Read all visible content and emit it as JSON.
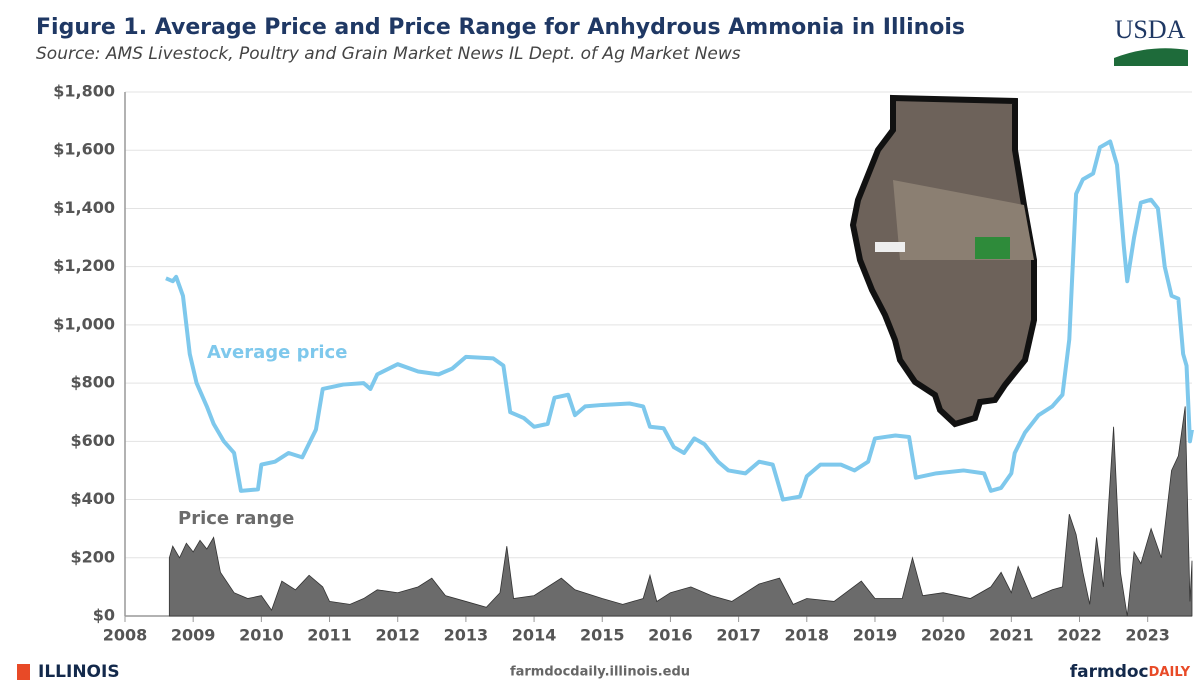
{
  "chart_data": {
    "type": "line",
    "title": "Figure 1. Average Price and Price Range for Anhydrous Ammonia in Illinois",
    "subtitle": "Source: AMS Livestock, Poultry and Grain Market News IL Dept. of Ag Market News",
    "xlim": [
      2008,
      2023.65
    ],
    "xticks": [
      2008,
      2009,
      2010,
      2011,
      2012,
      2013,
      2014,
      2015,
      2016,
      2017,
      2018,
      2019,
      2020,
      2021,
      2022,
      2023
    ],
    "ylim": [
      0,
      1800
    ],
    "yticks": [
      {
        "value": 0,
        "label": "$0"
      },
      {
        "value": 200,
        "label": "$200"
      },
      {
        "value": 400,
        "label": "$400"
      },
      {
        "value": 600,
        "label": "$600"
      },
      {
        "value": 800,
        "label": "$800"
      },
      {
        "value": 1000,
        "label": "$1,000"
      },
      {
        "value": 1200,
        "label": "$1,200"
      },
      {
        "value": 1400,
        "label": "$1,400"
      },
      {
        "value": 1600,
        "label": "$1,600"
      },
      {
        "value": 1800,
        "label": "$1,800"
      }
    ],
    "grid": true,
    "series": [
      {
        "name": "Average price",
        "color": "#7ec8ec",
        "kind": "line",
        "x": [
          2008.6,
          2008.7,
          2008.75,
          2008.85,
          2008.95,
          2009.05,
          2009.2,
          2009.3,
          2009.45,
          2009.6,
          2009.7,
          2009.95,
          2010.0,
          2010.2,
          2010.4,
          2010.6,
          2010.8,
          2010.9,
          2011.2,
          2011.5,
          2011.6,
          2011.7,
          2012.0,
          2012.3,
          2012.6,
          2012.8,
          2013.0,
          2013.4,
          2013.55,
          2013.65,
          2013.85,
          2014.0,
          2014.2,
          2014.3,
          2014.5,
          2014.6,
          2014.75,
          2015.0,
          2015.4,
          2015.6,
          2015.7,
          2015.9,
          2016.05,
          2016.2,
          2016.35,
          2016.5,
          2016.7,
          2016.85,
          2017.1,
          2017.3,
          2017.5,
          2017.65,
          2017.9,
          2018.0,
          2018.2,
          2018.5,
          2018.7,
          2018.9,
          2019.0,
          2019.3,
          2019.5,
          2019.6,
          2019.9,
          2020.3,
          2020.6,
          2020.7,
          2020.85,
          2021.0,
          2021.05,
          2021.2,
          2021.4,
          2021.6,
          2021.75,
          2021.85,
          2021.95,
          2022.05,
          2022.2,
          2022.3,
          2022.45,
          2022.55,
          2022.65,
          2022.7,
          2022.8,
          2022.9,
          2023.05,
          2023.15,
          2023.25,
          2023.35,
          2023.45,
          2023.52,
          2023.57,
          2023.62,
          2023.65
        ],
        "values": [
          1160,
          1150,
          1165,
          1100,
          900,
          800,
          720,
          660,
          600,
          560,
          430,
          435,
          520,
          530,
          560,
          545,
          640,
          780,
          795,
          800,
          780,
          830,
          865,
          840,
          830,
          850,
          890,
          885,
          860,
          700,
          680,
          650,
          660,
          750,
          760,
          690,
          720,
          725,
          730,
          720,
          650,
          645,
          580,
          560,
          610,
          590,
          530,
          500,
          490,
          530,
          520,
          400,
          410,
          480,
          520,
          520,
          500,
          530,
          610,
          620,
          615,
          475,
          490,
          500,
          490,
          430,
          440,
          490,
          560,
          630,
          690,
          720,
          760,
          950,
          1450,
          1500,
          1520,
          1610,
          1630,
          1550,
          1270,
          1150,
          1300,
          1420,
          1430,
          1400,
          1200,
          1100,
          1090,
          900,
          860,
          600,
          640
        ]
      },
      {
        "name": "Price range",
        "color": "#6b6b6b",
        "kind": "area",
        "x": [
          2008.65,
          2008.7,
          2008.8,
          2008.9,
          2009.0,
          2009.1,
          2009.2,
          2009.3,
          2009.4,
          2009.6,
          2009.8,
          2010.0,
          2010.15,
          2010.3,
          2010.5,
          2010.7,
          2010.9,
          2011.0,
          2011.3,
          2011.5,
          2011.7,
          2012.0,
          2012.3,
          2012.5,
          2012.7,
          2013.0,
          2013.3,
          2013.5,
          2013.6,
          2013.7,
          2014.0,
          2014.4,
          2014.6,
          2015.0,
          2015.3,
          2015.6,
          2015.7,
          2015.8,
          2016.0,
          2016.3,
          2016.6,
          2016.9,
          2017.3,
          2017.6,
          2017.8,
          2018.0,
          2018.4,
          2018.8,
          2019.0,
          2019.4,
          2019.55,
          2019.7,
          2020.0,
          2020.4,
          2020.7,
          2020.85,
          2021.0,
          2021.1,
          2021.3,
          2021.6,
          2021.75,
          2021.85,
          2021.95,
          2022.05,
          2022.15,
          2022.25,
          2022.35,
          2022.5,
          2022.6,
          2022.7,
          2022.8,
          2022.9,
          2023.05,
          2023.2,
          2023.35,
          2023.45,
          2023.55,
          2023.62,
          2023.65
        ],
        "values": [
          200,
          240,
          200,
          250,
          220,
          260,
          230,
          270,
          150,
          80,
          60,
          70,
          20,
          120,
          90,
          140,
          100,
          50,
          40,
          60,
          90,
          80,
          100,
          130,
          70,
          50,
          30,
          80,
          240,
          60,
          70,
          130,
          90,
          60,
          40,
          60,
          140,
          50,
          80,
          100,
          70,
          50,
          110,
          130,
          40,
          60,
          50,
          120,
          60,
          60,
          200,
          70,
          80,
          60,
          100,
          150,
          80,
          170,
          60,
          90,
          100,
          350,
          280,
          150,
          40,
          270,
          100,
          650,
          150,
          0,
          220,
          180,
          300,
          200,
          500,
          550,
          720,
          50,
          190
        ]
      }
    ]
  },
  "branding": {
    "agency": "USDA",
    "university": "ILLINOIS",
    "website": "farmdocdaily.illinois.edu",
    "logo": [
      "farmdoc",
      "DAILY"
    ]
  }
}
